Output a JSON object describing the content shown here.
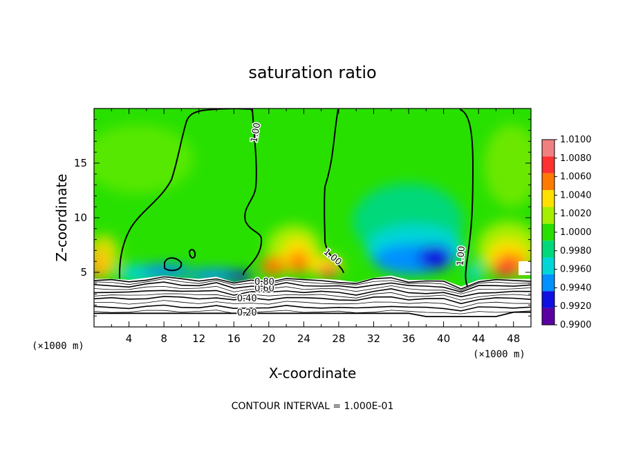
{
  "chart_data": {
    "type": "heatmap",
    "title": "saturation ratio",
    "xlabel": "X-coordinate",
    "ylabel": "Z-coordinate",
    "x_unit": "(×1000 m)",
    "xlim": [
      0,
      50
    ],
    "ylim": [
      0,
      20
    ],
    "x_ticks": [
      4,
      8,
      12,
      16,
      20,
      24,
      28,
      32,
      36,
      40,
      44,
      48
    ],
    "y_ticks": [
      5,
      10,
      15
    ],
    "colorbar": {
      "levels": [
        "1.0100",
        "1.0080",
        "1.0060",
        "1.0040",
        "1.0020",
        "1.0000",
        "0.9980",
        "0.9960",
        "0.9940",
        "0.9920",
        "0.9900"
      ],
      "colors": [
        "#f08080",
        "#ff3030",
        "#ff7a00",
        "#ffe000",
        "#a6ee00",
        "#28e000",
        "#00d87a",
        "#00d6d6",
        "#0090ff",
        "#1010e0",
        "#5a00a0"
      ]
    },
    "surface_z": [
      [
        0,
        4.4
      ],
      [
        2,
        4.4
      ],
      [
        4,
        4.3
      ],
      [
        6,
        4.5
      ],
      [
        8,
        4.7
      ],
      [
        10,
        4.5
      ],
      [
        12,
        4.4
      ],
      [
        14,
        4.6
      ],
      [
        16,
        4.1
      ],
      [
        18,
        4.4
      ],
      [
        20,
        4.3
      ],
      [
        22,
        4.6
      ],
      [
        24,
        4.4
      ],
      [
        26,
        4.4
      ],
      [
        28,
        4.3
      ],
      [
        30,
        4.1
      ],
      [
        32,
        4.5
      ],
      [
        34,
        4.7
      ],
      [
        36,
        4.3
      ],
      [
        38,
        4.3
      ],
      [
        40,
        4.3
      ],
      [
        42,
        3.7
      ],
      [
        44,
        4.3
      ],
      [
        46,
        4.4
      ],
      [
        48,
        4.4
      ],
      [
        50,
        4.4
      ]
    ],
    "contour_labels": [
      {
        "text": "1.00",
        "x": 18.5,
        "z": 17.8
      },
      {
        "text": "1.00",
        "x": 27.3,
        "z": 6.4
      },
      {
        "text": "1.00",
        "x": 42.0,
        "z": 6.5
      },
      {
        "text": "0.40",
        "x": 17.5,
        "z": 2.6
      },
      {
        "text": "0.20",
        "x": 17.5,
        "z": 1.3
      },
      {
        "text": "0.60",
        "x": 19.5,
        "z": 3.5
      },
      {
        "text": "0.80",
        "x": 19.5,
        "z": 4.1
      }
    ],
    "note": "CONTOUR INTERVAL = 1.000E-01"
  }
}
